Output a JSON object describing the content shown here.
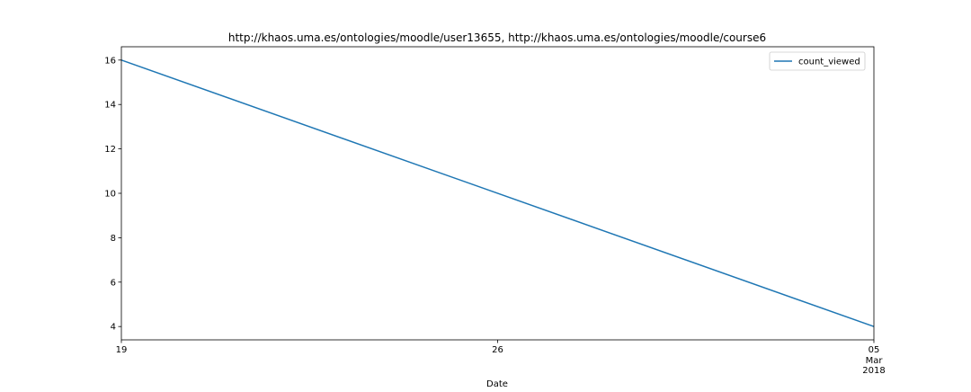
{
  "chart_data": {
    "type": "line",
    "title": "http://khaos.uma.es/ontologies/moodle/user13655, http://khaos.uma.es/ontologies/moodle/course6",
    "xlabel": "Date",
    "ylabel": "",
    "x": [
      "2018-02-19",
      "2018-03-05"
    ],
    "series": [
      {
        "name": "count_viewed",
        "values": [
          16,
          4
        ],
        "color": "#1f77b4"
      }
    ],
    "xlim": [
      "2018-02-19",
      "2018-03-05"
    ],
    "ylim": [
      3.4,
      16.6
    ],
    "x_ticks": [
      {
        "date": "2018-02-19",
        "label": "19",
        "sublabels": []
      },
      {
        "date": "2018-02-26",
        "label": "26",
        "sublabels": []
      },
      {
        "date": "2018-03-05",
        "label": "05",
        "sublabels": [
          "Mar",
          "2018"
        ]
      }
    ],
    "y_ticks": [
      4,
      6,
      8,
      10,
      12,
      14,
      16
    ],
    "grid": false,
    "legend_position": "top-right"
  }
}
